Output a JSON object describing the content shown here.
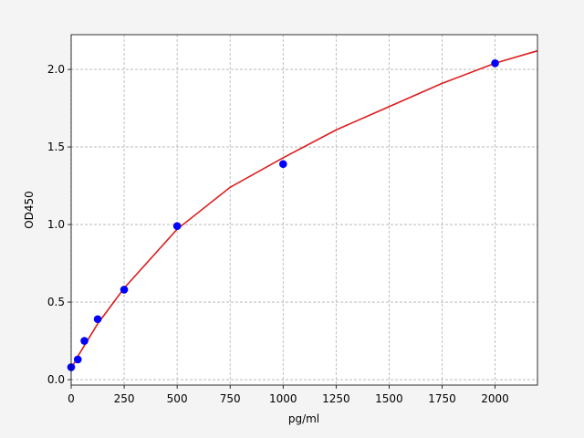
{
  "chart_data": {
    "type": "scatter",
    "x_label": "pg/ml",
    "y_label": "OD450",
    "xlim": [
      0,
      2200
    ],
    "ylim": [
      -0.035,
      2.224
    ],
    "xticks": [
      0,
      250,
      500,
      750,
      1000,
      1250,
      1500,
      1750,
      2000
    ],
    "yticks": [
      {
        "value": 0,
        "label": "0.0"
      },
      0.5,
      {
        "value": 1,
        "label": "1.0"
      },
      1.5,
      {
        "value": 2,
        "label": "2.0"
      }
    ],
    "grid": true,
    "series": [
      {
        "type": "line",
        "color": "#dd1c1c",
        "x": [
          0,
          31.25,
          62.5,
          125,
          250,
          500,
          750,
          1000,
          1250,
          1500,
          1750,
          2000,
          2200
        ],
        "values": [
          0.07,
          0.15,
          0.22,
          0.36,
          0.59,
          0.97,
          1.24,
          1.43,
          1.61,
          1.76,
          1.91,
          2.04,
          2.12
        ]
      },
      {
        "type": "scatter",
        "color": "#0000ff",
        "x": [
          0,
          31.25,
          62.5,
          125,
          250,
          500,
          1000,
          2000
        ],
        "values": [
          0.08,
          0.13,
          0.25,
          0.39,
          0.58,
          0.99,
          1.39,
          2.04
        ]
      }
    ]
  }
}
